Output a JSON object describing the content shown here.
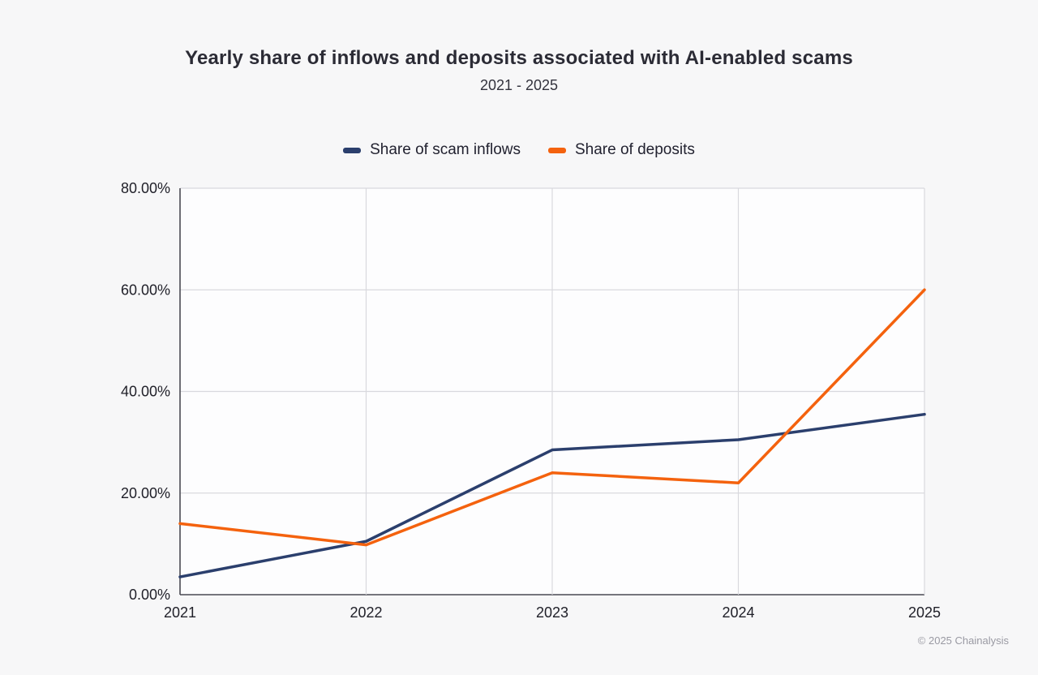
{
  "title": "Yearly share of inflows and deposits associated with AI-enabled scams",
  "subtitle": "2021 - 2025",
  "footer": "© 2025 Chainalysis",
  "colors": {
    "background": "#f7f7f8",
    "plot_background": "#fdfdfe",
    "grid": "#d9d9de",
    "axis": "#4a4a52",
    "tick_text": "#1f1f28",
    "inflows_line": "#2b3f6d",
    "deposits_line": "#f4620e"
  },
  "legend": {
    "items": [
      {
        "label": "Share of scam inflows",
        "swatch": "inflows-swatch"
      },
      {
        "label": "Share of deposits",
        "swatch": "deposits-swatch"
      }
    ]
  },
  "chart_data": {
    "type": "line",
    "categories": [
      "2021",
      "2022",
      "2023",
      "2024",
      "2025"
    ],
    "series": [
      {
        "name": "Share of scam inflows",
        "color": "#2b3f6d",
        "values": [
          3.5,
          10.5,
          28.5,
          30.5,
          35.5
        ]
      },
      {
        "name": "Share of deposits",
        "color": "#f4620e",
        "values": [
          14.0,
          9.8,
          24.0,
          22.0,
          60.0
        ]
      }
    ],
    "xlabel": "",
    "ylabel": "",
    "ylim": [
      0,
      80
    ],
    "ytick_step": 20,
    "ytick_format": "0.00%",
    "grid": true,
    "legend_position": "top"
  }
}
